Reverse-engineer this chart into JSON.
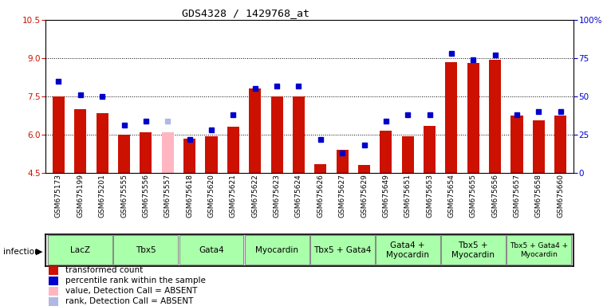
{
  "title": "GDS4328 / 1429768_at",
  "samples": [
    "GSM675173",
    "GSM675199",
    "GSM675201",
    "GSM675555",
    "GSM675556",
    "GSM675557",
    "GSM675618",
    "GSM675620",
    "GSM675621",
    "GSM675622",
    "GSM675623",
    "GSM675624",
    "GSM675626",
    "GSM675627",
    "GSM675629",
    "GSM675649",
    "GSM675651",
    "GSM675653",
    "GSM675654",
    "GSM675655",
    "GSM675656",
    "GSM675657",
    "GSM675658",
    "GSM675660"
  ],
  "bar_values": [
    7.5,
    7.0,
    6.85,
    6.0,
    6.1,
    6.1,
    5.85,
    5.95,
    6.3,
    7.8,
    7.5,
    7.5,
    4.85,
    5.4,
    4.8,
    6.15,
    5.95,
    6.35,
    8.85,
    8.8,
    8.95,
    6.75,
    6.55,
    6.75
  ],
  "bar_absent": [
    false,
    false,
    false,
    false,
    false,
    true,
    false,
    false,
    false,
    false,
    false,
    false,
    false,
    false,
    false,
    false,
    false,
    false,
    false,
    false,
    false,
    false,
    false,
    false
  ],
  "rank_pct": [
    60,
    51,
    50,
    31,
    34,
    34,
    22,
    28,
    38,
    55,
    57,
    57,
    22,
    13,
    18,
    34,
    38,
    38,
    78,
    74,
    77,
    38,
    40,
    40
  ],
  "rank_absent": [
    false,
    false,
    false,
    false,
    false,
    true,
    false,
    false,
    false,
    false,
    false,
    false,
    false,
    false,
    false,
    false,
    false,
    false,
    false,
    false,
    false,
    false,
    false,
    false
  ],
  "groups": [
    {
      "label": "LacZ",
      "start": 0,
      "end": 2,
      "color": "#aaffaa"
    },
    {
      "label": "Tbx5",
      "start": 3,
      "end": 5,
      "color": "#aaffaa"
    },
    {
      "label": "Gata4",
      "start": 6,
      "end": 8,
      "color": "#aaffaa"
    },
    {
      "label": "Myocardin",
      "start": 9,
      "end": 11,
      "color": "#aaffaa"
    },
    {
      "label": "Tbx5 + Gata4",
      "start": 12,
      "end": 14,
      "color": "#aaffaa"
    },
    {
      "label": "Gata4 +\nMyocardin",
      "start": 15,
      "end": 17,
      "color": "#aaffaa"
    },
    {
      "label": "Tbx5 +\nMyocardin",
      "start": 18,
      "end": 20,
      "color": "#aaffaa"
    },
    {
      "label": "Tbx5 + Gata4 +\nMyocardin",
      "start": 21,
      "end": 23,
      "color": "#aaffaa"
    }
  ],
  "ylim_left": [
    4.5,
    10.5
  ],
  "yticks_left": [
    4.5,
    6.0,
    7.5,
    9.0,
    10.5
  ],
  "yticks_right_pct": [
    0,
    25,
    50,
    75,
    100
  ],
  "bar_color": "#cc1100",
  "bar_absent_color": "#ffb6c1",
  "rank_color": "#0000cc",
  "rank_absent_color": "#b0b8e8",
  "bg_color": "#e8e8e8",
  "group_border_color": "#888888",
  "legend_items": [
    {
      "label": "transformed count",
      "color": "#cc1100",
      "marker": "s"
    },
    {
      "label": "percentile rank within the sample",
      "color": "#0000cc",
      "marker": "s"
    },
    {
      "label": "value, Detection Call = ABSENT",
      "color": "#ffb6c1",
      "marker": "s"
    },
    {
      "label": "rank, Detection Call = ABSENT",
      "color": "#b0b8e8",
      "marker": "s"
    }
  ]
}
